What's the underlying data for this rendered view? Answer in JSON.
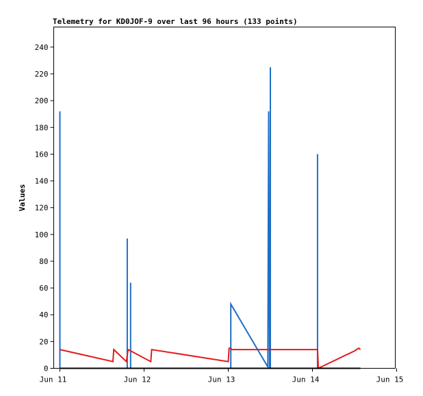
{
  "chart_data": {
    "type": "line",
    "title": "Telemetry for KD0JOF-9 over last 96 hours (133 points)",
    "xlabel": "",
    "ylabel": "Values",
    "x_ticks": [
      "Jun 11",
      "Jun 12",
      "Jun 13",
      "Jun 14",
      "Jun 15"
    ],
    "y_ticks": [
      0,
      20,
      40,
      60,
      80,
      100,
      120,
      140,
      160,
      180,
      200,
      220,
      240
    ],
    "xlim": [
      0,
      4
    ],
    "ylim": [
      0,
      255
    ],
    "grid": false,
    "legend": "none",
    "series": [
      {
        "color": "#1f6fc4",
        "points": [
          [
            0.0,
            0
          ],
          [
            0.0,
            192
          ],
          [
            0.0,
            0
          ],
          [
            0.8,
            0
          ],
          [
            0.8,
            97
          ],
          [
            0.8,
            0
          ],
          [
            0.84,
            0
          ],
          [
            0.84,
            64
          ],
          [
            0.84,
            0
          ],
          [
            2.03,
            0
          ],
          [
            2.03,
            48
          ],
          [
            2.47,
            1
          ],
          [
            2.48,
            192
          ],
          [
            2.49,
            0
          ],
          [
            2.5,
            0
          ],
          [
            2.5,
            225
          ],
          [
            2.5,
            0
          ],
          [
            3.06,
            0
          ],
          [
            3.06,
            160
          ],
          [
            3.06,
            0
          ]
        ]
      },
      {
        "color": "#e31a1c",
        "points": [
          [
            0.0,
            14
          ],
          [
            0.63,
            5
          ],
          [
            0.64,
            14
          ],
          [
            0.79,
            5
          ],
          [
            0.81,
            14
          ],
          [
            0.87,
            12
          ],
          [
            1.08,
            5
          ],
          [
            1.09,
            14
          ],
          [
            2.0,
            5
          ],
          [
            2.01,
            15
          ],
          [
            2.03,
            15
          ],
          [
            2.04,
            14
          ],
          [
            3.06,
            14
          ],
          [
            3.07,
            0
          ],
          [
            3.5,
            13
          ],
          [
            3.55,
            15
          ],
          [
            3.57,
            14
          ]
        ]
      },
      {
        "color": "#000000",
        "points": [
          [
            0.0,
            0
          ],
          [
            3.57,
            0
          ]
        ]
      }
    ]
  }
}
